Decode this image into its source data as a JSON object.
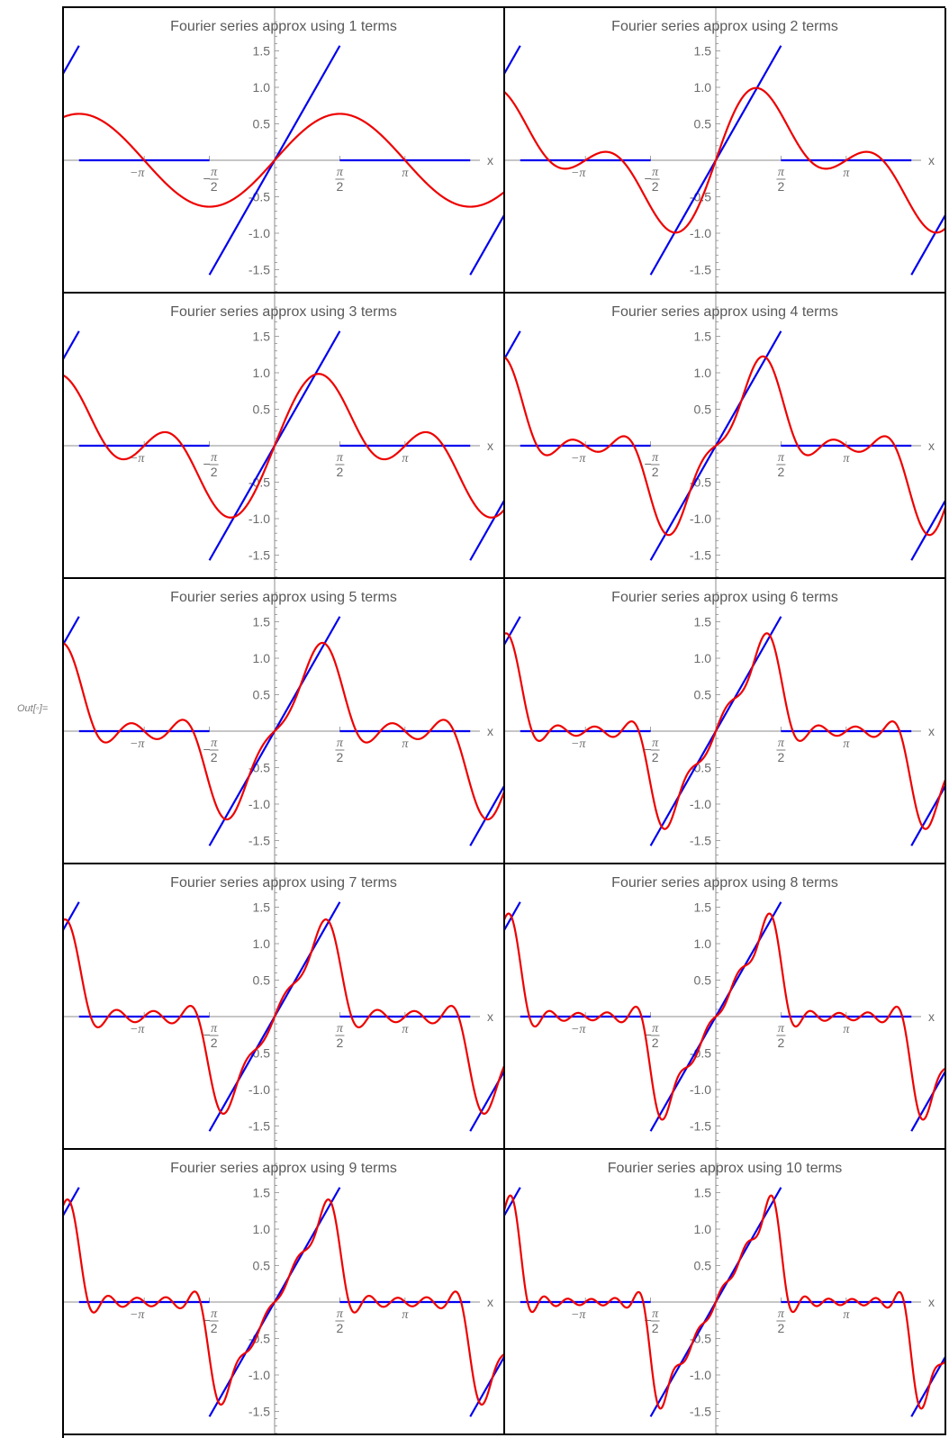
{
  "out_label": "Out[◦]=",
  "colors": {
    "target": "#0000ee",
    "approx": "#ee0000",
    "axis": "#8c8c8c",
    "text": "#595959"
  },
  "chart_data": {
    "type": "line",
    "layout": "grid",
    "columns": 2,
    "xlim": [
      -6.28,
      6.28
    ],
    "ylim": [
      -1.6,
      1.6
    ],
    "x_axis_label": "x",
    "y_ticks": [
      {
        "value": 1.5,
        "label": "1.5"
      },
      {
        "value": 1.0,
        "label": "1.0"
      },
      {
        "value": 0.5,
        "label": "0.5"
      },
      {
        "value": -0.5,
        "label": "-0.5"
      },
      {
        "value": -1.0,
        "label": "-1.0"
      },
      {
        "value": -1.5,
        "label": "-1.5"
      }
    ],
    "x_ticks": [
      {
        "value": -3.1416,
        "label": "−π"
      },
      {
        "value": -1.5708,
        "label": "−π/2"
      },
      {
        "value": 1.5708,
        "label": "π/2"
      },
      {
        "value": 3.1416,
        "label": "π"
      }
    ],
    "target_function": {
      "description": "periodic, period 2π: f(x) = x for |x| < π/2, 0 otherwise",
      "period": 6.2832,
      "segments": [
        {
          "x": [
            -1.5708,
            1.5708
          ],
          "y": [
            -1.5708,
            1.5708
          ]
        },
        {
          "x": [
            -3.1416,
            -1.5708
          ],
          "y": [
            0,
            0
          ]
        },
        {
          "x": [
            1.5708,
            3.1416
          ],
          "y": [
            0,
            0
          ]
        }
      ]
    },
    "approx_formula": "sum over n of (2/π)·[sin(nπ/2)/n² − (π/2)·cos(nπ/2)/n]·sin(nx)",
    "panels": [
      {
        "title": "Fourier series approx using 1 terms",
        "terms": 1
      },
      {
        "title": "Fourier series approx using 2 terms",
        "terms": 2
      },
      {
        "title": "Fourier series approx using 3 terms",
        "terms": 3
      },
      {
        "title": "Fourier series approx using 4 terms",
        "terms": 4
      },
      {
        "title": "Fourier series approx using 5 terms",
        "terms": 5
      },
      {
        "title": "Fourier series approx using 6 terms",
        "terms": 6
      },
      {
        "title": "Fourier series approx using 7 terms",
        "terms": 7
      },
      {
        "title": "Fourier series approx using 8 terms",
        "terms": 8
      },
      {
        "title": "Fourier series approx using 9 terms",
        "terms": 9
      },
      {
        "title": "Fourier series approx using 10 terms",
        "terms": 10
      }
    ]
  }
}
